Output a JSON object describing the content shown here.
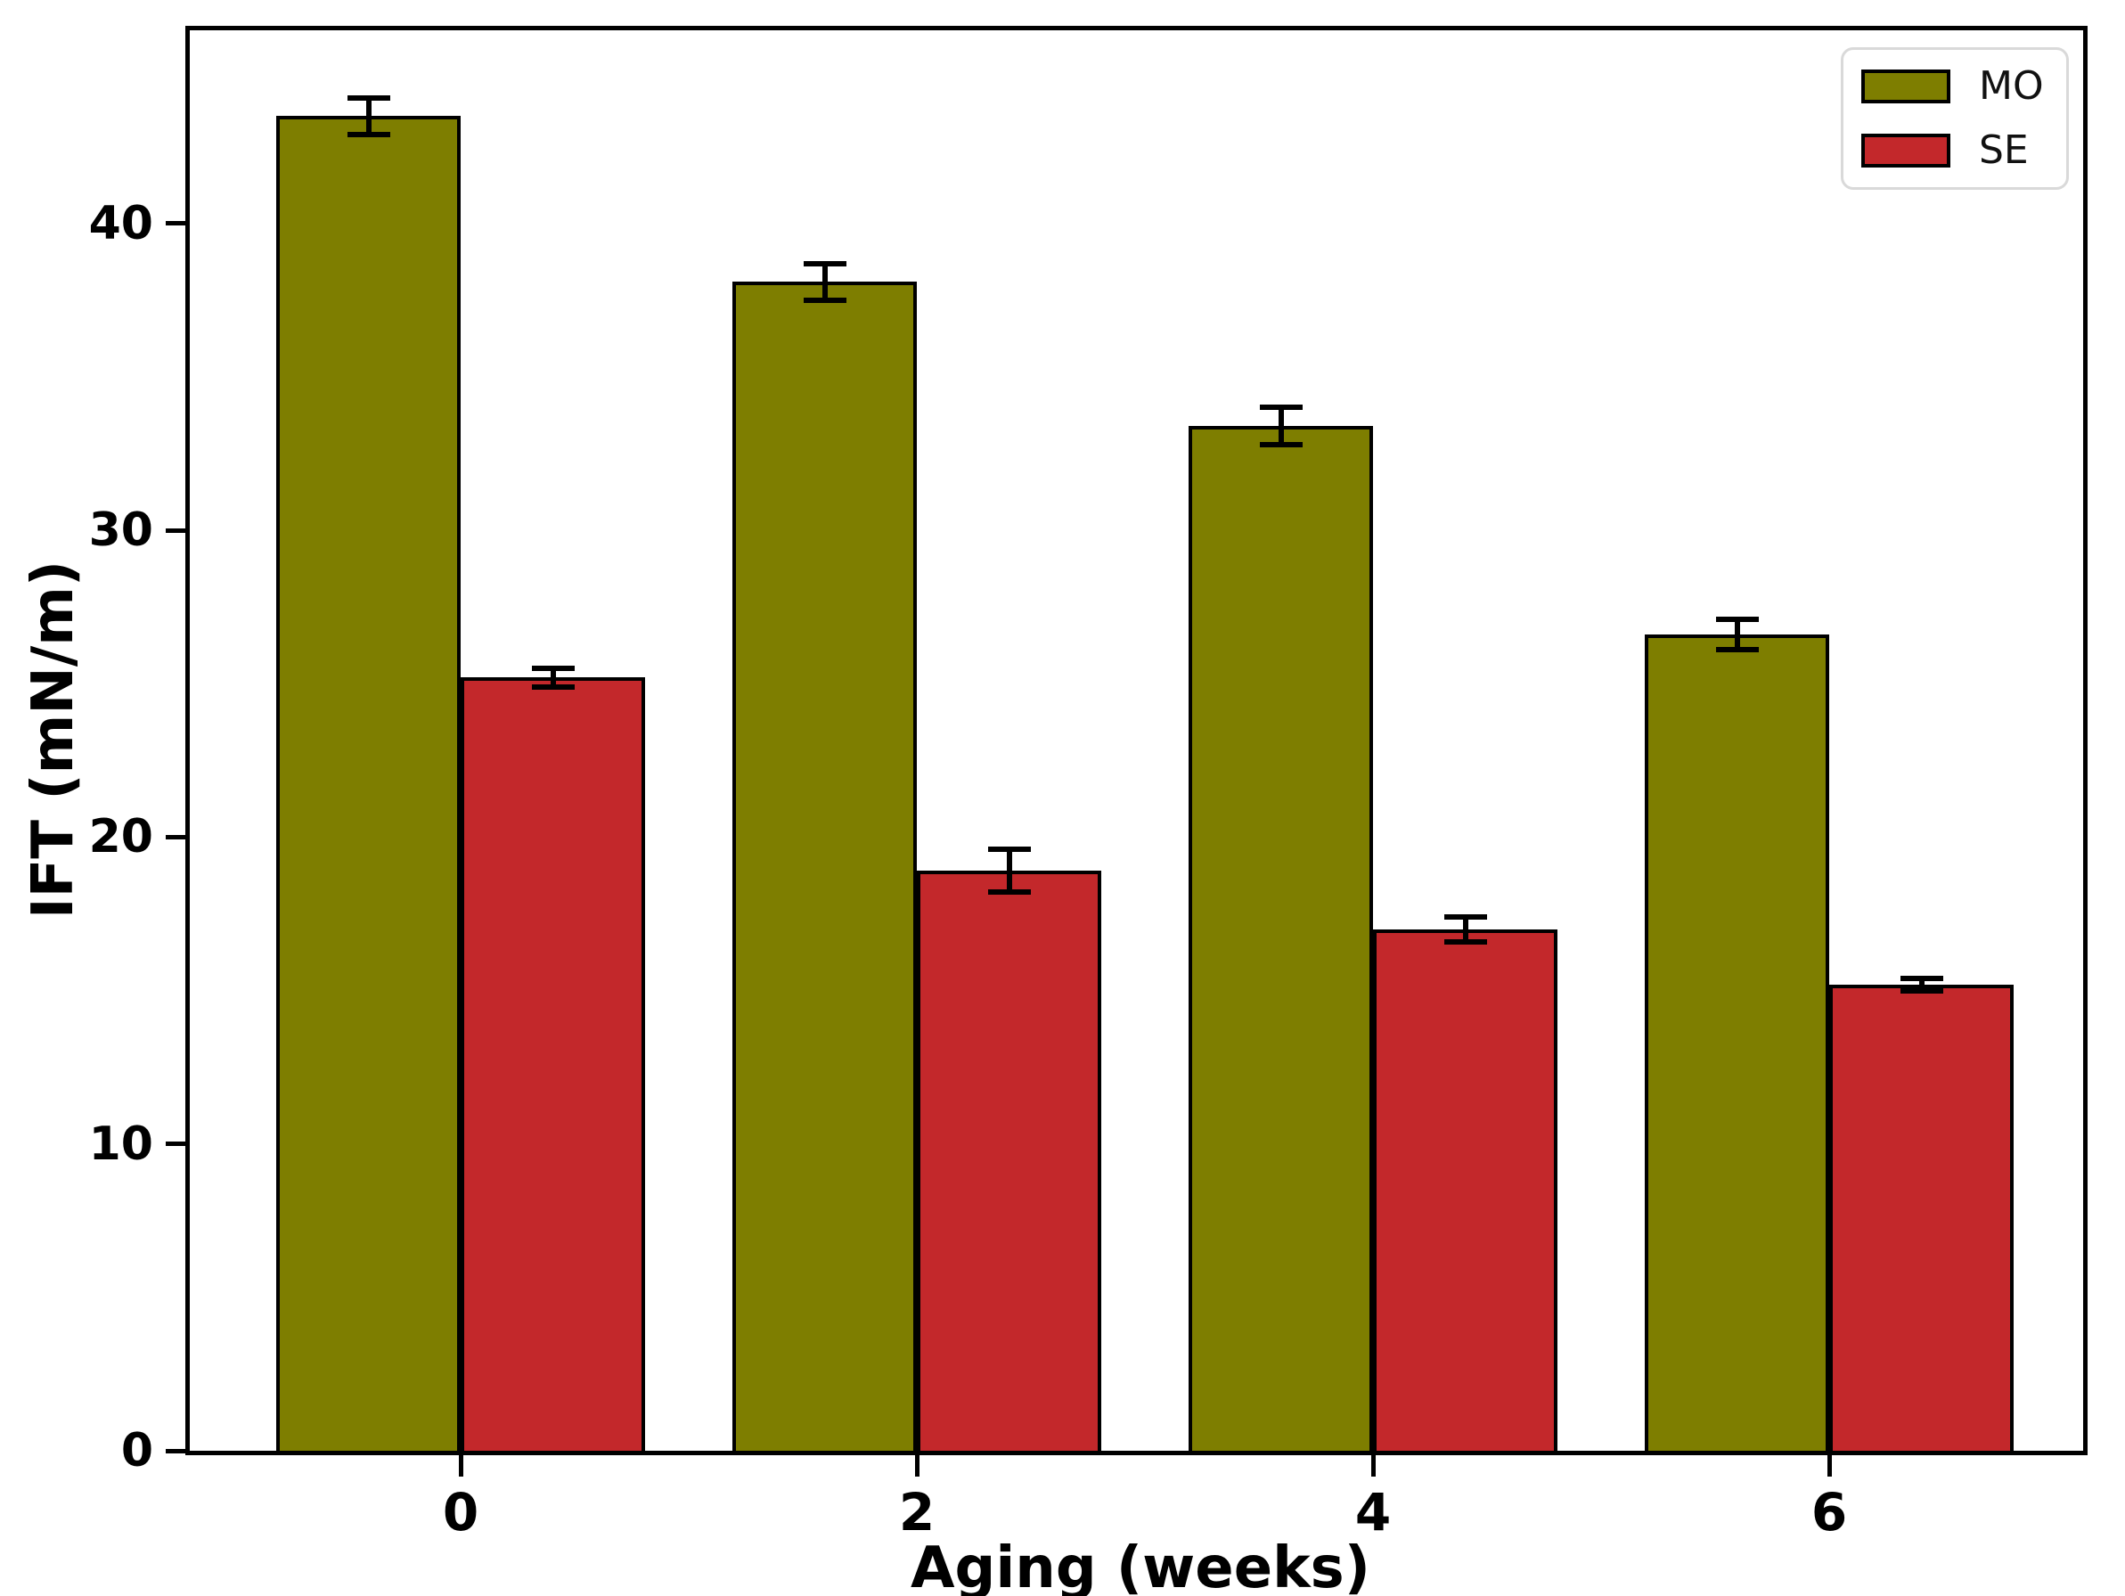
{
  "chart_data": {
    "type": "bar",
    "title": "",
    "xlabel": "Aging (weeks)",
    "ylabel": "IFT (mN/m)",
    "categories": [
      "0",
      "2",
      "4",
      "6"
    ],
    "series": [
      {
        "name": "MO",
        "color": "#7e7e00",
        "values": [
          43.5,
          38.1,
          33.4,
          26.6
        ],
        "errors": [
          0.6,
          0.6,
          0.6,
          0.5
        ]
      },
      {
        "name": "SE",
        "color": "#c3282b",
        "values": [
          25.2,
          18.9,
          17.0,
          15.2
        ],
        "errors": [
          0.3,
          0.7,
          0.4,
          0.2
        ]
      }
    ],
    "ylim": [
      0,
      46.3
    ],
    "yticks": [
      0,
      10,
      20,
      30,
      40
    ],
    "grid": false,
    "legend_position": "upper right",
    "bar_edge_color": "#000000",
    "error_bar_color": "#000000",
    "axis_color": "#000000",
    "legend_border_color": "#d9d9d9",
    "background_color": "#ffffff"
  }
}
